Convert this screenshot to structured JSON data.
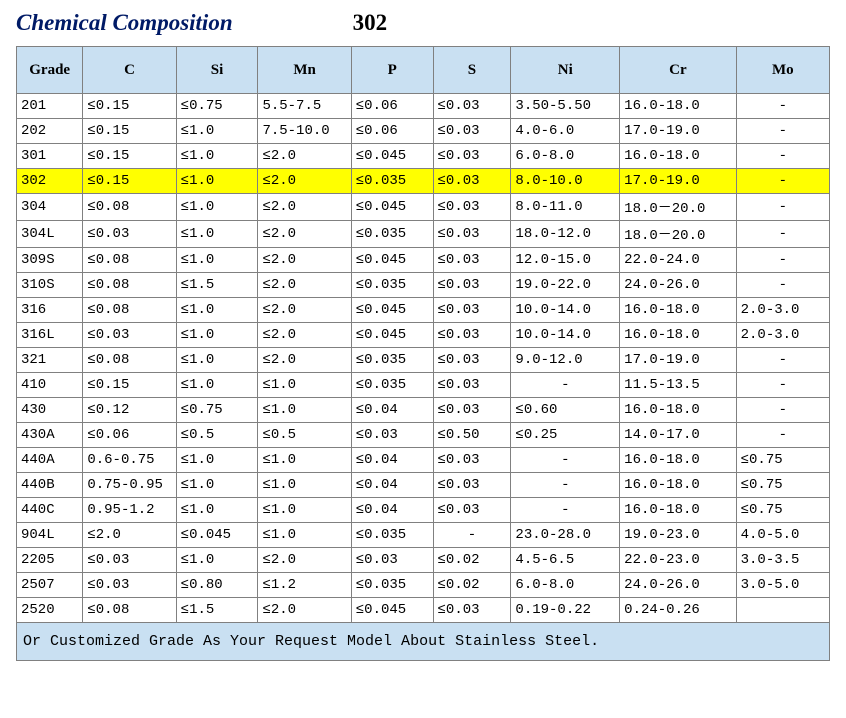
{
  "title": {
    "main": "Chemical Composition",
    "number": "302"
  },
  "headers": [
    "Grade",
    "C",
    "Si",
    "Mn",
    "P",
    "S",
    "Ni",
    "Cr",
    "Mo"
  ],
  "highlight_grade": "302",
  "rows": [
    {
      "grade": "201",
      "c": "≤0.15",
      "si": "≤0.75",
      "mn": "5.5-7.5",
      "p": "≤0.06",
      "s": "≤0.03",
      "ni": "3.50-5.50",
      "cr": "16.0-18.0",
      "mo": "-"
    },
    {
      "grade": "202",
      "c": "≤0.15",
      "si": "≤1.0",
      "mn": "7.5-10.0",
      "p": "≤0.06",
      "s": "≤0.03",
      "ni": "4.0-6.0",
      "cr": "17.0-19.0",
      "mo": "-"
    },
    {
      "grade": "301",
      "c": "≤0.15",
      "si": "≤1.0",
      "mn": "≤2.0",
      "p": "≤0.045",
      "s": "≤0.03",
      "ni": "6.0-8.0",
      "cr": "16.0-18.0",
      "mo": "-"
    },
    {
      "grade": "302",
      "c": "≤0.15",
      "si": "≤1.0",
      "mn": "≤2.0",
      "p": "≤0.035",
      "s": "≤0.03",
      "ni": "8.0-10.0",
      "cr": "17.0-19.0",
      "mo": "-"
    },
    {
      "grade": "304",
      "c": "≤0.08",
      "si": "≤1.0",
      "mn": "≤2.0",
      "p": "≤0.045",
      "s": "≤0.03",
      "ni": "8.0-11.0",
      "cr": "18.0－20.0",
      "mo": "-"
    },
    {
      "grade": "304L",
      "c": "≤0.03",
      "si": "≤1.0",
      "mn": "≤2.0",
      "p": "≤0.035",
      "s": "≤0.03",
      "ni": "18.0-12.0",
      "cr": "18.0－20.0",
      "mo": "-"
    },
    {
      "grade": "309S",
      "c": "≤0.08",
      "si": "≤1.0",
      "mn": "≤2.0",
      "p": "≤0.045",
      "s": "≤0.03",
      "ni": "12.0-15.0",
      "cr": "22.0-24.0",
      "mo": "-"
    },
    {
      "grade": "310S",
      "c": "≤0.08",
      "si": "≤1.5",
      "mn": "≤2.0",
      "p": "≤0.035",
      "s": "≤0.03",
      "ni": "19.0-22.0",
      "cr": "24.0-26.0",
      "mo": "-"
    },
    {
      "grade": "316",
      "c": "≤0.08",
      "si": "≤1.0",
      "mn": "≤2.0",
      "p": "≤0.045",
      "s": "≤0.03",
      "ni": "10.0-14.0",
      "cr": "16.0-18.0",
      "mo": "2.0-3.0"
    },
    {
      "grade": "316L",
      "c": "≤0.03",
      "si": "≤1.0",
      "mn": "≤2.0",
      "p": "≤0.045",
      "s": "≤0.03",
      "ni": "10.0-14.0",
      "cr": "16.0-18.0",
      "mo": "2.0-3.0"
    },
    {
      "grade": "321",
      "c": "≤0.08",
      "si": "≤1.0",
      "mn": "≤2.0",
      "p": "≤0.035",
      "s": "≤0.03",
      "ni": "9.0-12.0",
      "cr": "17.0-19.0",
      "mo": "-"
    },
    {
      "grade": "410",
      "c": "≤0.15",
      "si": "≤1.0",
      "mn": "≤1.0",
      "p": "≤0.035",
      "s": "≤0.03",
      "ni": "-",
      "cr": "11.5-13.5",
      "mo": "-"
    },
    {
      "grade": "430",
      "c": "≤0.12",
      "si": "≤0.75",
      "mn": "≤1.0",
      "p": "≤0.04",
      "s": "≤0.03",
      "ni": "≤0.60",
      "cr": "16.0-18.0",
      "mo": "-"
    },
    {
      "grade": "430A",
      "c": "≤0.06",
      "si": "≤0.5",
      "mn": "≤0.5",
      "p": "≤0.03",
      "s": "≤0.50",
      "ni": "≤0.25",
      "cr": "14.0-17.0",
      "mo": "-"
    },
    {
      "grade": "440A",
      "c": "0.6-0.75",
      "si": "≤1.0",
      "mn": "≤1.0",
      "p": "≤0.04",
      "s": "≤0.03",
      "ni": "-",
      "cr": "16.0-18.0",
      "mo": "≤0.75"
    },
    {
      "grade": "440B",
      "c": "0.75-0.95",
      "si": "≤1.0",
      "mn": "≤1.0",
      "p": "≤0.04",
      "s": "≤0.03",
      "ni": "-",
      "cr": "16.0-18.0",
      "mo": "≤0.75"
    },
    {
      "grade": "440C",
      "c": "0.95-1.2",
      "si": "≤1.0",
      "mn": "≤1.0",
      "p": "≤0.04",
      "s": "≤0.03",
      "ni": "-",
      "cr": "16.0-18.0",
      "mo": "≤0.75"
    },
    {
      "grade": "904L",
      "c": "≤2.0",
      "si": "≤0.045",
      "mn": "≤1.0",
      "p": "≤0.035",
      "s": "-",
      "ni": "23.0-28.0",
      "cr": "19.0-23.0",
      "mo": "4.0-5.0"
    },
    {
      "grade": "2205",
      "c": "≤0.03",
      "si": "≤1.0",
      "mn": "≤2.0",
      "p": "≤0.03",
      "s": "≤0.02",
      "ni": "4.5-6.5",
      "cr": "22.0-23.0",
      "mo": "3.0-3.5"
    },
    {
      "grade": "2507",
      "c": "≤0.03",
      "si": "≤0.80",
      "mn": "≤1.2",
      "p": "≤0.035",
      "s": "≤0.02",
      "ni": "6.0-8.0",
      "cr": "24.0-26.0",
      "mo": "3.0-5.0"
    },
    {
      "grade": "2520",
      "c": "≤0.08",
      "si": "≤1.5",
      "mn": "≤2.0",
      "p": "≤0.045",
      "s": "≤0.03",
      "ni": "0.19-0.22",
      "cr": "0.24-0.26",
      "mo": ""
    }
  ],
  "footer": "Or Customized Grade As Your Request Model About Stainless Steel.",
  "colors": {
    "title_color": "#001a66",
    "header_bg": "#c9e0f2",
    "highlight_bg": "#ffff00",
    "border": "#808080",
    "text": "#000000"
  },
  "col_classes": [
    "col-grade",
    "col-c",
    "col-si",
    "col-mn",
    "col-p",
    "col-s",
    "col-ni",
    "col-cr",
    "col-mo"
  ]
}
